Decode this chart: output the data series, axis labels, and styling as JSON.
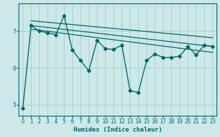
{
  "bg_color": "#cce8e8",
  "grid_color": "#aacccc",
  "line_color": "#006666",
  "xlabel": "Humidex (Indice chaleur)",
  "ylim": [
    4.7,
    7.75
  ],
  "xlim": [
    -0.5,
    23.5
  ],
  "yticks": [
    5,
    6,
    7
  ],
  "xticks": [
    0,
    1,
    2,
    3,
    4,
    5,
    6,
    7,
    8,
    9,
    10,
    11,
    12,
    13,
    14,
    15,
    16,
    17,
    18,
    19,
    20,
    21,
    22,
    23
  ],
  "main_series_x": [
    0,
    1,
    2,
    3,
    4,
    5,
    6,
    7,
    8,
    9,
    10,
    11,
    12,
    13,
    14,
    15,
    16,
    17,
    18,
    19,
    20,
    21,
    22,
    23
  ],
  "main_series_y": [
    4.9,
    7.15,
    7.0,
    6.95,
    6.9,
    7.42,
    6.48,
    6.2,
    5.92,
    6.75,
    6.52,
    6.5,
    6.62,
    5.38,
    5.33,
    6.2,
    6.38,
    6.28,
    6.28,
    6.32,
    6.58,
    6.35,
    6.62,
    6.58
  ],
  "trend1_x": [
    1,
    23
  ],
  "trend1_y": [
    7.15,
    6.58
  ],
  "trend2_x": [
    1,
    23
  ],
  "trend2_y": [
    7.05,
    6.42
  ],
  "trend3_x": [
    1,
    23
  ],
  "trend3_y": [
    7.28,
    6.82
  ]
}
